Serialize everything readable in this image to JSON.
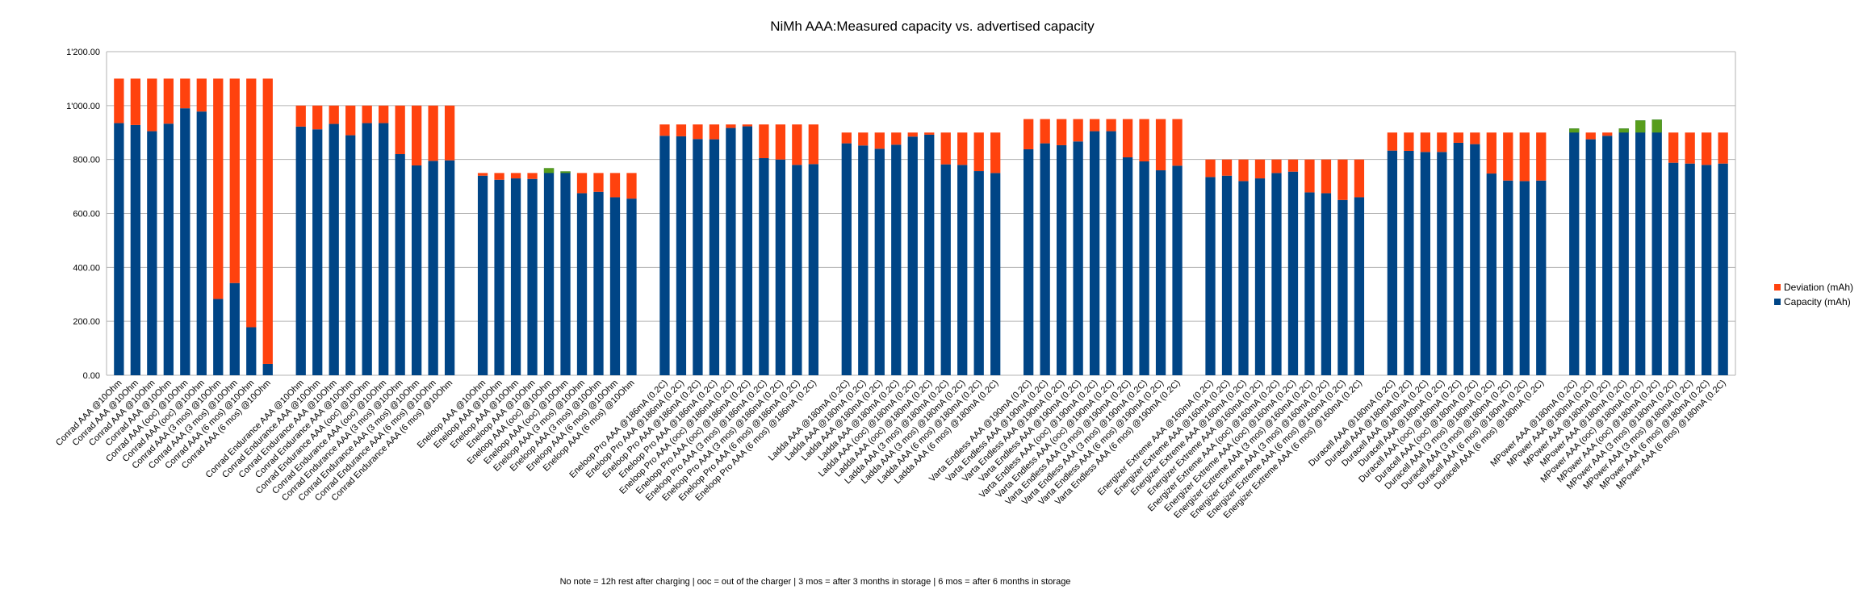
{
  "chart_data": {
    "type": "bar",
    "stacked": true,
    "title": "NiMh AAA:Measured capacity vs. advertised capacity",
    "note": "No note = 12h rest after charging | ooc = out of the charger | 3 mos = after 3 months in storage | 6 mos = after 6 months in storage",
    "ylim": [
      0,
      1200
    ],
    "yticks": [
      "0.00",
      "200.00",
      "400.00",
      "600.00",
      "800.00",
      "1'000.00",
      "1'200.00"
    ],
    "grid": true,
    "legend_position": "right",
    "colors": {
      "capacity": "#004586",
      "deviation_over": "#ff420e",
      "deviation_under": "#579d1c"
    },
    "series": [
      {
        "name": "Deviation (mAh)",
        "color": "#ff420e"
      },
      {
        "name": "Capacity (mAh)",
        "color": "#004586"
      }
    ],
    "groups": [
      {
        "advertised": 1100,
        "bars": [
          {
            "label": "Conrad AAA @10Ohm",
            "capacity": 935
          },
          {
            "label": "Conrad AAA @10Ohm",
            "capacity": 928
          },
          {
            "label": "Conrad AAA @10Ohm",
            "capacity": 905
          },
          {
            "label": "Conrad AAA @10Ohm",
            "capacity": 933
          },
          {
            "label": "Conrad AAA (ooc) @10Ohm",
            "capacity": 990
          },
          {
            "label": "Conrad AAA (ooc) @10Ohm",
            "capacity": 978
          },
          {
            "label": "Conrad AAA (3 mos) @10Ohm",
            "capacity": 283
          },
          {
            "label": "Conrad AAA (3 mos) @10Ohm",
            "capacity": 342
          },
          {
            "label": "Conrad AAA (6 mos) @10Ohm",
            "capacity": 178
          },
          {
            "label": "Conrad AAA (6 mos) @10Ohm",
            "capacity": 42
          }
        ]
      },
      {
        "advertised": 1000,
        "bars": [
          {
            "label": "Conrad Endurance AAA @10Ohm",
            "capacity": 922
          },
          {
            "label": "Conrad Endurance AAA @10Ohm",
            "capacity": 912
          },
          {
            "label": "Conrad Endurance AAA @10Ohm",
            "capacity": 932
          },
          {
            "label": "Conrad Endurance AAA @10Ohm",
            "capacity": 890
          },
          {
            "label": "Conrad Endurance AAA (ooc) @10Ohm",
            "capacity": 935
          },
          {
            "label": "Conrad Endurance AAA (ooc) @10Ohm",
            "capacity": 935
          },
          {
            "label": "Conrad Endurance AAA (3 mos) @10Ohm",
            "capacity": 820
          },
          {
            "label": "Conrad Endurance AAA (3 mos) @10Ohm",
            "capacity": 778
          },
          {
            "label": "Conrad Endurance AAA (6 mos) @10Ohm",
            "capacity": 795
          },
          {
            "label": "Conrad Endurance AAA (6 mos) @10Ohm",
            "capacity": 797
          }
        ]
      },
      {
        "advertised": 750,
        "bars": [
          {
            "label": "Eneloop AAA @10Ohm",
            "capacity": 740
          },
          {
            "label": "Eneloop AAA @10Ohm",
            "capacity": 725
          },
          {
            "label": "Eneloop AAA @10Ohm",
            "capacity": 730
          },
          {
            "label": "Eneloop AAA @10Ohm",
            "capacity": 728
          },
          {
            "label": "Eneloop AAA (ooc) @10Ohm",
            "capacity": 768
          },
          {
            "label": "Eneloop AAA (ooc) @10Ohm",
            "capacity": 756
          },
          {
            "label": "Eneloop AAA (3 mos) @10Ohm",
            "capacity": 675
          },
          {
            "label": "Eneloop AAA (3 mos) @10Ohm",
            "capacity": 680
          },
          {
            "label": "Eneloop AAA (6 mos) @10Ohm",
            "capacity": 660
          },
          {
            "label": "Eneloop AAA (6 mos) @10Ohm",
            "capacity": 655
          }
        ]
      },
      {
        "advertised": 930,
        "bars": [
          {
            "label": "Eneloop Pro AAA @186mA (0.2C)",
            "capacity": 888
          },
          {
            "label": "Eneloop Pro AAA @186mA (0.2C)",
            "capacity": 886
          },
          {
            "label": "Eneloop Pro AAA @186mA (0.2C)",
            "capacity": 876
          },
          {
            "label": "Eneloop Pro AAA @186mA (0.2C)",
            "capacity": 875
          },
          {
            "label": "Eneloop Pro AAA (ooc) @186mA (0.2C)",
            "capacity": 917
          },
          {
            "label": "Eneloop Pro AAA (ooc) @186mA (0.2C)",
            "capacity": 923
          },
          {
            "label": "Eneloop Pro AAA (3 mos) @186mA (0.2C)",
            "capacity": 805
          },
          {
            "label": "Eneloop Pro AAA (3 mos) @186mA (0.2C)",
            "capacity": 800
          },
          {
            "label": "Eneloop Pro AAA (6 mos) @186mA (0.2C)",
            "capacity": 780
          },
          {
            "label": "Eneloop Pro AAA (6 mos) @186mA (0.2C)",
            "capacity": 783
          }
        ]
      },
      {
        "advertised": 900,
        "bars": [
          {
            "label": "Ladda AAA @180mA (0.2C)",
            "capacity": 860
          },
          {
            "label": "Ladda AAA @180mA (0.2C)",
            "capacity": 852
          },
          {
            "label": "Ladda AAA @180mA (0.2C)",
            "capacity": 840
          },
          {
            "label": "Ladda AAA @180mA (0.2C)",
            "capacity": 855
          },
          {
            "label": "Ladda AAA (ooc) @180mA (0.2C)",
            "capacity": 885
          },
          {
            "label": "Ladda AAA (ooc) @180mA (0.2C)",
            "capacity": 892
          },
          {
            "label": "Ladda AAA (3 mos) @180mA (0.2C)",
            "capacity": 782
          },
          {
            "label": "Ladda AAA (3 mos) @180mA (0.2C)",
            "capacity": 780
          },
          {
            "label": "Ladda AAA (6 mos) @180mA (0.2C)",
            "capacity": 757
          },
          {
            "label": "Ladda AAA (6 mos) @180mA (0.2C)",
            "capacity": 750
          }
        ]
      },
      {
        "advertised": 950,
        "bars": [
          {
            "label": "Varta Endless AAA @190mA (0.2C)",
            "capacity": 838
          },
          {
            "label": "Varta Endless AAA @190mA (0.2C)",
            "capacity": 860
          },
          {
            "label": "Varta Endless AAA @190mA (0.2C)",
            "capacity": 853
          },
          {
            "label": "Varta Endless AAA @190mA (0.2C)",
            "capacity": 867
          },
          {
            "label": "Varta Endless AAA (ooc) @190mA (0.2C)",
            "capacity": 905
          },
          {
            "label": "Varta Endless AAA (ooc) @190mA (0.2C)",
            "capacity": 905
          },
          {
            "label": "Varta Endless AAA (3 mos) @190mA (0.2C)",
            "capacity": 808
          },
          {
            "label": "Varta Endless AAA (3 mos) @190mA (0.2C)",
            "capacity": 793
          },
          {
            "label": "Varta Endless AAA (6 mos) @190mA (0.2C)",
            "capacity": 760
          },
          {
            "label": "Varta Endless AAA (6 mos) @190mA (0.2C)",
            "capacity": 777
          }
        ]
      },
      {
        "advertised": 800,
        "bars": [
          {
            "label": "Energizer Extreme AAA @160mA (0.2C)",
            "capacity": 735
          },
          {
            "label": "Energizer Extreme AAA @160mA (0.2C)",
            "capacity": 740
          },
          {
            "label": "Energizer Extreme AAA @160mA (0.2C)",
            "capacity": 720
          },
          {
            "label": "Energizer Extreme AAA @160mA (0.2C)",
            "capacity": 730
          },
          {
            "label": "Energizer Extreme AAA (ooc) @160mA (0.2C)",
            "capacity": 750
          },
          {
            "label": "Energizer Extreme AAA (ooc) @160mA (0.2C)",
            "capacity": 755
          },
          {
            "label": "Energizer Extreme AAA (3 mos) @160mA (0.2C)",
            "capacity": 678
          },
          {
            "label": "Energizer Extreme AAA (3 mos) @160mA (0.2C)",
            "capacity": 675
          },
          {
            "label": "Energizer Extreme AAA (6 mos) @160mA (0.2C)",
            "capacity": 650
          },
          {
            "label": "Energizer Extreme AAA (6 mos) @160mA (0.2C)",
            "capacity": 660
          }
        ]
      },
      {
        "advertised": 900,
        "bars": [
          {
            "label": "Duracell AAA @180mA (0.2C)",
            "capacity": 833
          },
          {
            "label": "Duracell AAA @180mA (0.2C)",
            "capacity": 832
          },
          {
            "label": "Duracell AAA @180mA (0.2C)",
            "capacity": 828
          },
          {
            "label": "Duracell AAA @180mA (0.2C)",
            "capacity": 828
          },
          {
            "label": "Duracell AAA (ooc) @180mA (0.2C)",
            "capacity": 862
          },
          {
            "label": "Duracell AAA (ooc) @180mA (0.2C)",
            "capacity": 857
          },
          {
            "label": "Duracell AAA (3 mos) @180mA (0.2C)",
            "capacity": 748
          },
          {
            "label": "Duracell AAA (3 mos) @180mA (0.2C)",
            "capacity": 722
          },
          {
            "label": "Duracell AAA (6 mos) @180mA (0.2C)",
            "capacity": 720
          },
          {
            "label": "Duracell AAA (6 mos) @180mA (0.2C)",
            "capacity": 722
          }
        ]
      },
      {
        "advertised": 900,
        "bars": [
          {
            "label": "MPower AAA @180mA (0.2C)",
            "capacity": 915
          },
          {
            "label": "MPower AAA @180mA (0.2C)",
            "capacity": 875
          },
          {
            "label": "MPower AAA @180mA (0.2C)",
            "capacity": 888
          },
          {
            "label": "MPower AAA @180mA (0.2C)",
            "capacity": 915
          },
          {
            "label": "MPower AAA (ooc) @180mA (0.2C)",
            "capacity": 945
          },
          {
            "label": "MPower AAA (ooc) @180mA (0.2C)",
            "capacity": 948
          },
          {
            "label": "MPower AAA (3 mos) @180mA (0.2C)",
            "capacity": 788
          },
          {
            "label": "MPower AAA (3 mos) @180mA (0.2C)",
            "capacity": 785
          },
          {
            "label": "MPower AAA (6 mos) @180mA (0.2C)",
            "capacity": 780
          },
          {
            "label": "MPower AAA (6 mos) @180mA (0.2C)",
            "capacity": 785
          }
        ]
      }
    ]
  }
}
